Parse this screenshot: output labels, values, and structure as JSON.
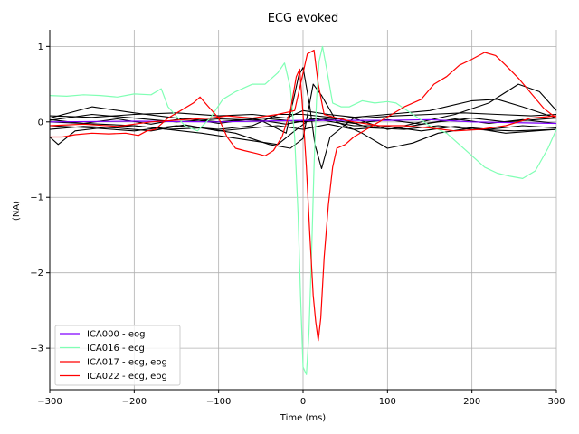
{
  "chart_data": {
    "type": "line",
    "title": "ECG evoked",
    "xlabel": "Time (ms)",
    "ylabel": "(NA)",
    "xlim": [
      -300,
      300
    ],
    "ylim": [
      -3.55,
      1.22
    ],
    "grid": true,
    "x_ticks": [
      -300,
      -200,
      -100,
      0,
      100,
      200,
      300
    ],
    "x_tick_labels": [
      "−300",
      "−200",
      "−100",
      "0",
      "100",
      "200",
      "300"
    ],
    "y_ticks": [
      1,
      0,
      -1,
      -2,
      -3
    ],
    "y_tick_labels": [
      "1",
      "0",
      "−1",
      "−2",
      "−3"
    ],
    "legend_position": "lower-left",
    "colors": {
      "other_components": "#000000",
      "ICA000": "#8000ff",
      "ICA016": "#80ffb4",
      "ICA017": "#ff0000",
      "ICA022": "#ff0000"
    },
    "background_series": [
      [
        [
          -300,
          0.02
        ],
        [
          -250,
          0.1
        ],
        [
          -200,
          0.05
        ],
        [
          -150,
          0.0
        ],
        [
          -100,
          0.04
        ],
        [
          -50,
          0.02
        ],
        [
          -20,
          -0.15
        ],
        [
          -5,
          0.62
        ],
        [
          0,
          0.72
        ],
        [
          8,
          0.2
        ],
        [
          14,
          -0.3
        ],
        [
          22,
          -0.62
        ],
        [
          32,
          -0.2
        ],
        [
          60,
          0.05
        ],
        [
          100,
          -0.1
        ],
        [
          130,
          -0.05
        ],
        [
          160,
          0.0
        ],
        [
          200,
          0.05
        ],
        [
          240,
          0.0
        ],
        [
          300,
          0.05
        ]
      ],
      [
        [
          -300,
          -0.2
        ],
        [
          -290,
          -0.3
        ],
        [
          -270,
          -0.12
        ],
        [
          -240,
          -0.08
        ],
        [
          -200,
          -0.05
        ],
        [
          -160,
          -0.1
        ],
        [
          -120,
          -0.08
        ],
        [
          -80,
          -0.15
        ],
        [
          -40,
          -0.3
        ],
        [
          -15,
          -0.35
        ],
        [
          0,
          -0.22
        ],
        [
          12,
          0.5
        ],
        [
          22,
          0.35
        ],
        [
          40,
          0.0
        ],
        [
          70,
          -0.15
        ],
        [
          100,
          -0.35
        ],
        [
          130,
          -0.28
        ],
        [
          160,
          -0.15
        ],
        [
          200,
          -0.08
        ],
        [
          240,
          -0.15
        ],
        [
          300,
          -0.1
        ]
      ],
      [
        [
          -300,
          0.05
        ],
        [
          -250,
          0.2
        ],
        [
          -200,
          0.12
        ],
        [
          -150,
          0.05
        ],
        [
          -100,
          0.0
        ],
        [
          -50,
          0.05
        ],
        [
          0,
          0.0
        ],
        [
          50,
          0.05
        ],
        [
          100,
          0.1
        ],
        [
          150,
          0.15
        ],
        [
          200,
          0.28
        ],
        [
          230,
          0.3
        ],
        [
          260,
          0.2
        ],
        [
          300,
          0.05
        ]
      ],
      [
        [
          -300,
          0.0
        ],
        [
          -200,
          -0.05
        ],
        [
          -120,
          -0.15
        ],
        [
          -60,
          -0.25
        ],
        [
          -30,
          -0.3
        ],
        [
          -10,
          -0.12
        ],
        [
          10,
          0.05
        ],
        [
          60,
          -0.05
        ],
        [
          120,
          -0.05
        ],
        [
          180,
          0.1
        ],
        [
          220,
          0.25
        ],
        [
          255,
          0.5
        ],
        [
          280,
          0.4
        ],
        [
          300,
          0.15
        ]
      ],
      [
        [
          -300,
          -0.05
        ],
        [
          -250,
          -0.08
        ],
        [
          -200,
          -0.12
        ],
        [
          -150,
          -0.05
        ],
        [
          -100,
          -0.1
        ],
        [
          -60,
          -0.05
        ],
        [
          -30,
          0.1
        ],
        [
          0,
          0.1
        ],
        [
          40,
          0.05
        ],
        [
          80,
          -0.08
        ],
        [
          120,
          -0.1
        ],
        [
          160,
          -0.05
        ],
        [
          200,
          -0.1
        ],
        [
          250,
          -0.12
        ],
        [
          300,
          -0.1
        ]
      ],
      [
        [
          -300,
          0.08
        ],
        [
          -250,
          0.06
        ],
        [
          -200,
          0.1
        ],
        [
          -150,
          0.12
        ],
        [
          -100,
          0.08
        ],
        [
          -60,
          0.1
        ],
        [
          -20,
          0.05
        ],
        [
          0,
          0.15
        ],
        [
          30,
          0.1
        ],
        [
          70,
          0.05
        ],
        [
          110,
          0.08
        ],
        [
          150,
          0.1
        ],
        [
          190,
          0.12
        ],
        [
          230,
          0.1
        ],
        [
          270,
          0.08
        ],
        [
          300,
          0.1
        ]
      ],
      [
        [
          -300,
          -0.1
        ],
        [
          -260,
          -0.06
        ],
        [
          -220,
          -0.08
        ],
        [
          -180,
          -0.12
        ],
        [
          -140,
          -0.04
        ],
        [
          -100,
          -0.12
        ],
        [
          -60,
          -0.08
        ],
        [
          -30,
          -0.05
        ],
        [
          0,
          -0.1
        ],
        [
          30,
          -0.03
        ],
        [
          60,
          -0.1
        ],
        [
          100,
          -0.06
        ],
        [
          140,
          -0.12
        ],
        [
          180,
          -0.06
        ],
        [
          220,
          -0.1
        ],
        [
          260,
          -0.05
        ],
        [
          300,
          -0.08
        ]
      ],
      [
        [
          -300,
          0.03
        ],
        [
          -260,
          -0.02
        ],
        [
          -220,
          0.04
        ],
        [
          -180,
          -0.03
        ],
        [
          -140,
          0.05
        ],
        [
          -100,
          -0.02
        ],
        [
          -60,
          0.04
        ],
        [
          -20,
          -0.03
        ],
        [
          20,
          0.05
        ],
        [
          60,
          -0.02
        ],
        [
          100,
          0.03
        ],
        [
          140,
          -0.03
        ],
        [
          180,
          0.04
        ],
        [
          220,
          -0.02
        ],
        [
          260,
          0.03
        ],
        [
          300,
          -0.02
        ]
      ]
    ],
    "series": [
      {
        "name": "ICA000 - eog",
        "color": "#8000ff",
        "points": [
          [
            -300,
            0.0
          ],
          [
            -200,
            0.01
          ],
          [
            -100,
            0.0
          ],
          [
            0,
            0.02
          ],
          [
            100,
            0.02
          ],
          [
            150,
            0.03
          ],
          [
            200,
            0.0
          ],
          [
            300,
            -0.02
          ]
        ]
      },
      {
        "name": "ICA016 - ecg",
        "color": "#80ffb4",
        "points": [
          [
            -300,
            0.35
          ],
          [
            -280,
            0.34
          ],
          [
            -260,
            0.36
          ],
          [
            -240,
            0.35
          ],
          [
            -220,
            0.33
          ],
          [
            -200,
            0.37
          ],
          [
            -180,
            0.36
          ],
          [
            -168,
            0.44
          ],
          [
            -160,
            0.2
          ],
          [
            -140,
            -0.05
          ],
          [
            -125,
            -0.12
          ],
          [
            -110,
            0.05
          ],
          [
            -95,
            0.3
          ],
          [
            -80,
            0.4
          ],
          [
            -60,
            0.5
          ],
          [
            -45,
            0.5
          ],
          [
            -30,
            0.65
          ],
          [
            -22,
            0.78
          ],
          [
            -15,
            0.45
          ],
          [
            -10,
            -0.2
          ],
          [
            -6,
            -1.2
          ],
          [
            -3,
            -2.3
          ],
          [
            0,
            -3.25
          ],
          [
            4,
            -3.35
          ],
          [
            7,
            -2.8
          ],
          [
            10,
            -1.8
          ],
          [
            13,
            -0.6
          ],
          [
            16,
            0.3
          ],
          [
            19,
            0.8
          ],
          [
            23,
            1.0
          ],
          [
            28,
            0.7
          ],
          [
            35,
            0.25
          ],
          [
            45,
            0.2
          ],
          [
            55,
            0.2
          ],
          [
            70,
            0.28
          ],
          [
            85,
            0.25
          ],
          [
            100,
            0.27
          ],
          [
            110,
            0.25
          ],
          [
            130,
            0.1
          ],
          [
            150,
            -0.05
          ],
          [
            170,
            -0.15
          ],
          [
            185,
            -0.3
          ],
          [
            200,
            -0.45
          ],
          [
            215,
            -0.6
          ],
          [
            230,
            -0.68
          ],
          [
            245,
            -0.72
          ],
          [
            260,
            -0.75
          ],
          [
            275,
            -0.65
          ],
          [
            290,
            -0.35
          ],
          [
            300,
            -0.1
          ]
        ]
      },
      {
        "name": "ICA017 - ecg, eog",
        "color": "#ff0000",
        "points": [
          [
            -300,
            -0.2
          ],
          [
            -285,
            -0.2
          ],
          [
            -270,
            -0.17
          ],
          [
            -250,
            -0.15
          ],
          [
            -230,
            -0.16
          ],
          [
            -210,
            -0.15
          ],
          [
            -195,
            -0.18
          ],
          [
            -185,
            -0.12
          ],
          [
            -175,
            -0.1
          ],
          [
            -160,
            0.05
          ],
          [
            -145,
            0.15
          ],
          [
            -130,
            0.25
          ],
          [
            -122,
            0.33
          ],
          [
            -112,
            0.2
          ],
          [
            -100,
            0.05
          ],
          [
            -90,
            -0.2
          ],
          [
            -80,
            -0.35
          ],
          [
            -70,
            -0.38
          ],
          [
            -55,
            -0.42
          ],
          [
            -45,
            -0.45
          ],
          [
            -35,
            -0.38
          ],
          [
            -25,
            -0.2
          ],
          [
            -15,
            0.15
          ],
          [
            -8,
            0.6
          ],
          [
            -4,
            0.7
          ],
          [
            0,
            0.1
          ],
          [
            4,
            -0.6
          ],
          [
            8,
            -1.5
          ],
          [
            12,
            -2.3
          ],
          [
            15,
            -2.65
          ],
          [
            18,
            -2.9
          ],
          [
            21,
            -2.6
          ],
          [
            25,
            -1.8
          ],
          [
            30,
            -1.1
          ],
          [
            35,
            -0.6
          ],
          [
            40,
            -0.35
          ],
          [
            50,
            -0.3
          ],
          [
            60,
            -0.2
          ],
          [
            75,
            -0.1
          ],
          [
            90,
            0.0
          ],
          [
            105,
            0.1
          ],
          [
            120,
            0.2
          ],
          [
            140,
            0.3
          ],
          [
            155,
            0.5
          ],
          [
            170,
            0.6
          ],
          [
            185,
            0.75
          ],
          [
            200,
            0.83
          ],
          [
            215,
            0.92
          ],
          [
            228,
            0.88
          ],
          [
            240,
            0.75
          ],
          [
            255,
            0.58
          ],
          [
            270,
            0.38
          ],
          [
            285,
            0.18
          ],
          [
            300,
            0.05
          ]
        ]
      },
      {
        "name": "ICA022 - ecg, eog",
        "color": "#ff0000",
        "points": [
          [
            -300,
            -0.05
          ],
          [
            -260,
            -0.03
          ],
          [
            -220,
            -0.06
          ],
          [
            -180,
            0.0
          ],
          [
            -140,
            0.03
          ],
          [
            -110,
            0.05
          ],
          [
            -90,
            0.08
          ],
          [
            -60,
            0.05
          ],
          [
            -30,
            0.1
          ],
          [
            -10,
            0.15
          ],
          [
            5,
            0.9
          ],
          [
            13,
            0.95
          ],
          [
            18,
            0.5
          ],
          [
            25,
            0.1
          ],
          [
            40,
            0.05
          ],
          [
            60,
            0.0
          ],
          [
            90,
            -0.05
          ],
          [
            120,
            -0.05
          ],
          [
            150,
            -0.08
          ],
          [
            180,
            -0.12
          ],
          [
            210,
            -0.1
          ],
          [
            240,
            -0.05
          ],
          [
            270,
            0.05
          ],
          [
            300,
            0.08
          ]
        ]
      }
    ]
  }
}
